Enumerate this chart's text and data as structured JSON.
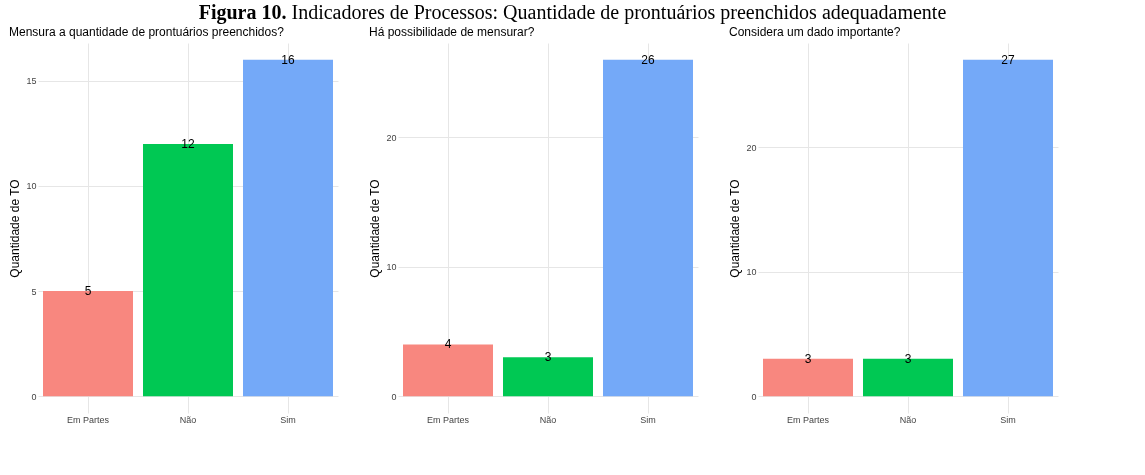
{
  "chart_data": [
    {
      "type": "bar",
      "title": "Mensura a quantidade de prontuários preenchidos?",
      "annotations": [
        "Figura 10. Indicadores de Processos: Quantidade de prontuários preenchidos adequadamente"
      ],
      "ylabel": "Quantidade de TO",
      "categories": [
        "Em Partes",
        "Não",
        "Sim"
      ],
      "values": [
        5,
        12,
        16
      ],
      "colors": [
        "#f8877f",
        "#00c853",
        "#74a9f8"
      ],
      "ylim": [
        -0.8,
        16.8
      ],
      "yticks": [
        0,
        5,
        10,
        15
      ],
      "grid": true,
      "data_labels": true
    },
    {
      "type": "bar",
      "title": "Há possibilidade de mensurar?",
      "ylabel": "Quantidade de TO",
      "categories": [
        "Em Partes",
        "Não",
        "Sim"
      ],
      "values": [
        4,
        3,
        26
      ],
      "colors": [
        "#f8877f",
        "#00c853",
        "#74a9f8"
      ],
      "ylim": [
        -1.3,
        27.3
      ],
      "yticks": [
        0,
        10,
        20
      ],
      "grid": true,
      "data_labels": true
    },
    {
      "type": "bar",
      "title": "Considera um dado importante?",
      "ylabel": "Quantidade de TO",
      "categories": [
        "Em Partes",
        "Não",
        "Sim"
      ],
      "values": [
        3,
        3,
        27
      ],
      "colors": [
        "#f8877f",
        "#00c853",
        "#74a9f8"
      ],
      "ylim": [
        -1.35,
        28.35
      ],
      "yticks": [
        0,
        10,
        20
      ],
      "grid": true,
      "data_labels": true
    }
  ]
}
